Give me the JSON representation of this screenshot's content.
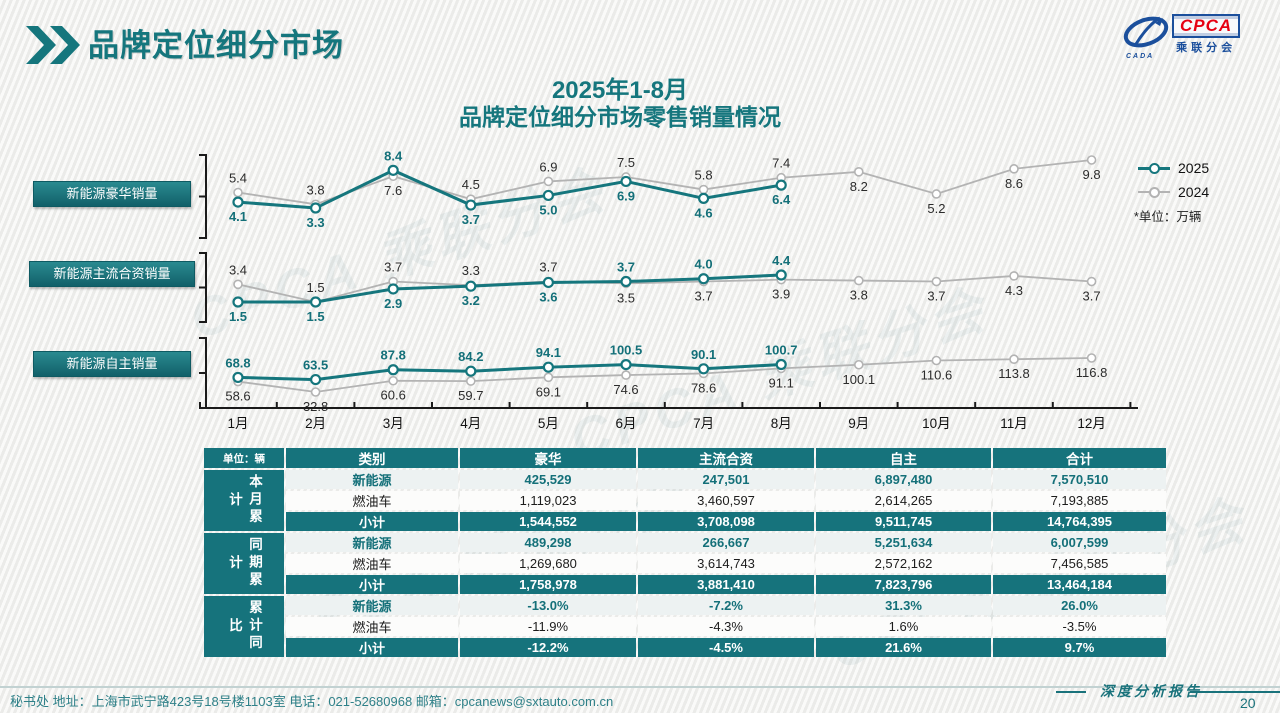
{
  "page": {
    "title": "品牌定位细分市场",
    "page_number": "20"
  },
  "logo": {
    "cpca": "CPCA",
    "sub": "乘联分会",
    "cada": "CADA"
  },
  "watermark": "CPCA 乘联分会",
  "chart": {
    "title_line1": "2025年1-8月",
    "title_line2": "品牌定位细分市场零售销量情况",
    "legend_2025": "2025",
    "legend_2024": "2024",
    "unit_note": "*单位：万辆",
    "months": [
      "1月",
      "2月",
      "3月",
      "4月",
      "5月",
      "6月",
      "7月",
      "8月",
      "9月",
      "10月",
      "11月",
      "12月"
    ]
  },
  "chart_data": [
    {
      "type": "line",
      "title": "新能源豪华销量",
      "categories": [
        "1月",
        "2月",
        "3月",
        "4月",
        "5月",
        "6月",
        "7月",
        "8月",
        "9月",
        "10月",
        "11月",
        "12月"
      ],
      "series": [
        {
          "name": "2025",
          "values": [
            4.1,
            3.3,
            8.4,
            3.7,
            5.0,
            6.9,
            4.6,
            6.4
          ]
        },
        {
          "name": "2024",
          "values": [
            5.4,
            3.8,
            7.6,
            4.5,
            6.9,
            7.5,
            5.8,
            7.4,
            8.2,
            5.2,
            8.6,
            9.8
          ]
        }
      ],
      "ylabel": "万辆",
      "grid": false,
      "legend_position": "right"
    },
    {
      "type": "line",
      "title": "新能源主流合资销量",
      "categories": [
        "1月",
        "2月",
        "3月",
        "4月",
        "5月",
        "6月",
        "7月",
        "8月",
        "9月",
        "10月",
        "11月",
        "12月"
      ],
      "series": [
        {
          "name": "2025",
          "values": [
            1.5,
            1.5,
            2.9,
            3.2,
            3.6,
            3.7,
            4.0,
            4.4
          ]
        },
        {
          "name": "2024",
          "values": [
            3.4,
            1.5,
            3.7,
            3.3,
            3.7,
            3.5,
            3.7,
            3.9,
            3.8,
            3.7,
            4.3,
            3.7
          ]
        }
      ],
      "ylabel": "万辆",
      "grid": false,
      "legend_position": "right"
    },
    {
      "type": "line",
      "title": "新能源自主销量",
      "categories": [
        "1月",
        "2月",
        "3月",
        "4月",
        "5月",
        "6月",
        "7月",
        "8月",
        "9月",
        "10月",
        "11月",
        "12月"
      ],
      "series": [
        {
          "name": "2025",
          "values": [
            68.8,
            63.5,
            87.8,
            84.2,
            94.1,
            100.5,
            90.1,
            100.7
          ]
        },
        {
          "name": "2024",
          "values": [
            58.6,
            32.8,
            60.6,
            59.7,
            69.1,
            74.6,
            78.6,
            91.1,
            100.1,
            110.6,
            113.8,
            116.8
          ]
        }
      ],
      "ylabel": "万辆",
      "grid": false,
      "legend_position": "right"
    }
  ],
  "table": {
    "unit_label": "单位：辆",
    "columns": [
      "类别",
      "豪华",
      "主流合资",
      "自主",
      "合计"
    ],
    "groups": [
      {
        "label": "本月累计",
        "rows": [
          {
            "label": "新能源",
            "type": "nev",
            "values": [
              "425,529",
              "247,501",
              "6,897,480",
              "7,570,510"
            ]
          },
          {
            "label": "燃油车",
            "type": "fuel",
            "values": [
              "1,119,023",
              "3,460,597",
              "2,614,265",
              "7,193,885"
            ]
          },
          {
            "label": "小计",
            "type": "sub",
            "values": [
              "1,544,552",
              "3,708,098",
              "9,511,745",
              "14,764,395"
            ]
          }
        ]
      },
      {
        "label": "同期累计",
        "rows": [
          {
            "label": "新能源",
            "type": "nev",
            "values": [
              "489,298",
              "266,667",
              "5,251,634",
              "6,007,599"
            ]
          },
          {
            "label": "燃油车",
            "type": "fuel",
            "values": [
              "1,269,680",
              "3,614,743",
              "2,572,162",
              "7,456,585"
            ]
          },
          {
            "label": "小计",
            "type": "sub",
            "values": [
              "1,758,978",
              "3,881,410",
              "7,823,796",
              "13,464,184"
            ]
          }
        ]
      },
      {
        "label": "累计同比",
        "rows": [
          {
            "label": "新能源",
            "type": "nev",
            "values": [
              "-13.0%",
              "-7.2%",
              "31.3%",
              "26.0%"
            ]
          },
          {
            "label": "燃油车",
            "type": "fuel",
            "values": [
              "-11.9%",
              "-4.3%",
              "1.6%",
              "-3.5%"
            ]
          },
          {
            "label": "小计",
            "type": "sub",
            "values": [
              "-12.2%",
              "-4.5%",
              "21.6%",
              "9.7%"
            ]
          }
        ]
      }
    ]
  },
  "footer": {
    "left": "秘书处   地址：上海市武宁路423号18号楼1103室  电话：021-52680968   邮箱：cpcanews@sxtauto.com.cn",
    "report_label": "深度分析报告",
    "page_number": "20"
  },
  "colors": {
    "accent_teal": "#15767d",
    "line_2024_gray": "#b3b3b3",
    "logo_blue": "#1b4f9c",
    "logo_red": "#e60012"
  }
}
